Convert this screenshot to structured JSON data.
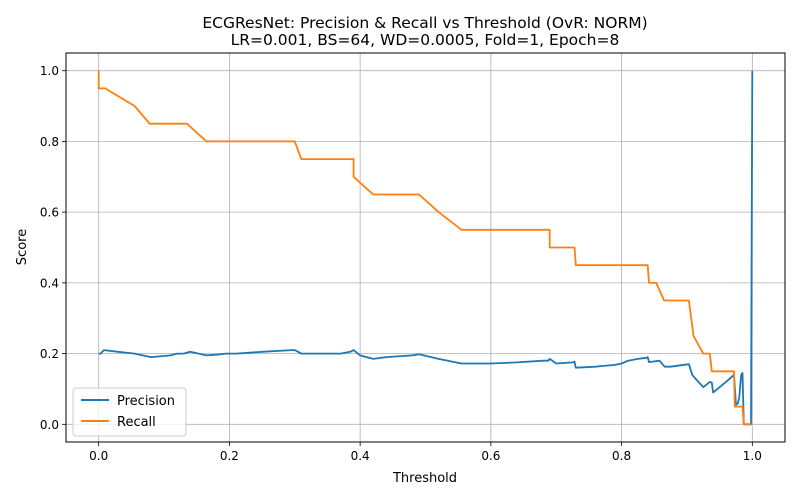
{
  "chart_data": {
    "type": "line",
    "title": "ECGResNet: Precision & Recall vs Threshold (OvR: NORM)",
    "subtitle": "LR=0.001, BS=64, WD=0.0005, Fold=1, Epoch=8",
    "xlabel": "Threshold",
    "ylabel": "Score",
    "xlim": [
      -0.05,
      1.05
    ],
    "ylim": [
      -0.05,
      1.05
    ],
    "xticks": [
      0.0,
      0.2,
      0.4,
      0.6,
      0.8,
      1.0
    ],
    "xtick_labels": [
      "0.0",
      "0.2",
      "0.4",
      "0.6",
      "0.8",
      "1.0"
    ],
    "yticks": [
      0.0,
      0.2,
      0.4,
      0.6,
      0.8,
      1.0
    ],
    "ytick_labels": [
      "0.0",
      "0.2",
      "0.4",
      "0.6",
      "0.8",
      "1.0"
    ],
    "grid": true,
    "legend_position": "lower-left",
    "series": [
      {
        "name": "Precision",
        "color": "#1f77b4",
        "x": [
          0.0,
          0.003,
          0.008,
          0.03,
          0.055,
          0.08,
          0.11,
          0.12,
          0.13,
          0.14,
          0.165,
          0.18,
          0.195,
          0.21,
          0.25,
          0.295,
          0.3,
          0.31,
          0.36,
          0.37,
          0.385,
          0.39,
          0.4,
          0.42,
          0.44,
          0.48,
          0.49,
          0.52,
          0.555,
          0.6,
          0.64,
          0.68,
          0.688,
          0.69,
          0.7,
          0.725,
          0.728,
          0.73,
          0.76,
          0.77,
          0.79,
          0.8,
          0.81,
          0.825,
          0.838,
          0.84,
          0.842,
          0.85,
          0.858,
          0.866,
          0.875,
          0.89,
          0.903,
          0.908,
          0.915,
          0.925,
          0.935,
          0.938,
          0.94,
          0.95,
          0.963,
          0.972,
          0.975,
          0.978,
          0.98,
          0.983,
          0.985,
          0.987,
          0.99,
          0.993,
          0.995,
          0.998,
          1.0
        ],
        "y": [
          0.2,
          0.2,
          0.21,
          0.205,
          0.2,
          0.19,
          0.195,
          0.2,
          0.2,
          0.205,
          0.195,
          0.197,
          0.2,
          0.2,
          0.205,
          0.21,
          0.21,
          0.2,
          0.2,
          0.2,
          0.205,
          0.21,
          0.195,
          0.185,
          0.19,
          0.195,
          0.198,
          0.185,
          0.172,
          0.172,
          0.175,
          0.18,
          0.18,
          0.185,
          0.172,
          0.175,
          0.177,
          0.16,
          0.163,
          0.165,
          0.168,
          0.172,
          0.18,
          0.185,
          0.188,
          0.19,
          0.176,
          0.178,
          0.18,
          0.163,
          0.163,
          0.167,
          0.17,
          0.14,
          0.125,
          0.105,
          0.12,
          0.118,
          0.09,
          0.105,
          0.125,
          0.14,
          0.055,
          0.06,
          0.075,
          0.14,
          0.145,
          0.0,
          0.0,
          0.0,
          0.0,
          0.0,
          1.0
        ]
      },
      {
        "name": "Recall",
        "color": "#ff7f0e",
        "x": [
          0.0,
          0.0,
          0.0,
          0.01,
          0.055,
          0.078,
          0.135,
          0.165,
          0.3,
          0.31,
          0.39,
          0.39,
          0.42,
          0.48,
          0.49,
          0.52,
          0.555,
          0.69,
          0.69,
          0.728,
          0.73,
          0.84,
          0.842,
          0.853,
          0.865,
          0.903,
          0.91,
          0.925,
          0.935,
          0.938,
          0.972,
          0.973,
          0.985,
          0.987,
          0.993,
          0.998
        ],
        "y": [
          1.0,
          0.95,
          0.95,
          0.95,
          0.9,
          0.85,
          0.85,
          0.8,
          0.8,
          0.75,
          0.75,
          0.7,
          0.65,
          0.65,
          0.65,
          0.6,
          0.55,
          0.55,
          0.5,
          0.5,
          0.45,
          0.45,
          0.4,
          0.4,
          0.35,
          0.35,
          0.25,
          0.2,
          0.2,
          0.15,
          0.15,
          0.05,
          0.05,
          0.0,
          0.0,
          0.0
        ]
      }
    ]
  }
}
